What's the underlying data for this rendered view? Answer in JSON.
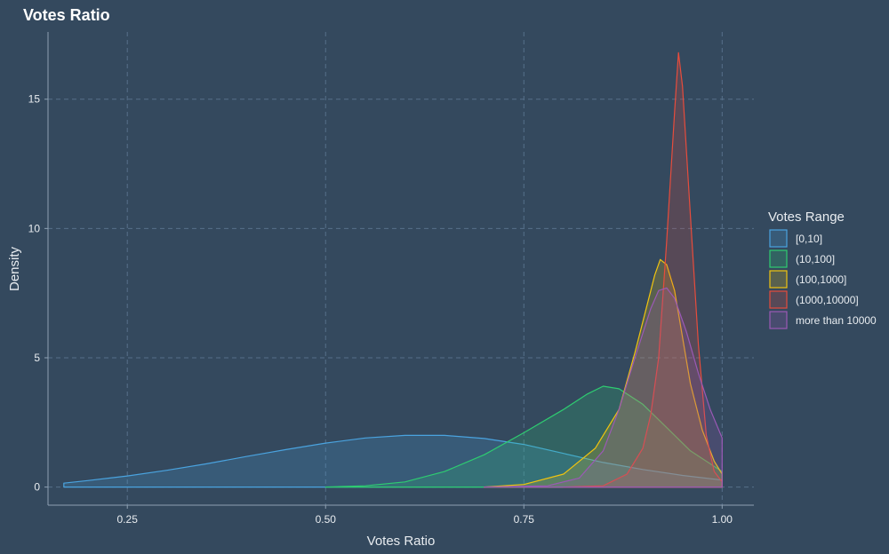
{
  "chart_data": {
    "type": "area",
    "title": "Votes Ratio",
    "xlabel": "Votes Ratio",
    "ylabel": "Density",
    "xlim": [
      0.15,
      1.04
    ],
    "ylim": [
      -0.7,
      17.6
    ],
    "x_ticks": [
      0.25,
      0.5,
      0.75,
      1.0
    ],
    "x_tick_labels": [
      "0.25",
      "0.50",
      "0.75",
      "1.00"
    ],
    "y_ticks": [
      0,
      5,
      10,
      15
    ],
    "y_tick_labels": [
      "0",
      "5",
      "10",
      "15"
    ],
    "grid": true,
    "legend": {
      "title": "Votes Range",
      "position": "right"
    },
    "fill_opacity": 0.2,
    "series": [
      {
        "name": "[0,10]",
        "color": "#4aa3df",
        "points": [
          [
            0.17,
            0.15
          ],
          [
            0.2,
            0.25
          ],
          [
            0.25,
            0.43
          ],
          [
            0.3,
            0.65
          ],
          [
            0.35,
            0.9
          ],
          [
            0.4,
            1.18
          ],
          [
            0.45,
            1.45
          ],
          [
            0.5,
            1.7
          ],
          [
            0.55,
            1.9
          ],
          [
            0.6,
            2.0
          ],
          [
            0.65,
            2.0
          ],
          [
            0.7,
            1.88
          ],
          [
            0.75,
            1.65
          ],
          [
            0.8,
            1.3
          ],
          [
            0.85,
            0.95
          ],
          [
            0.9,
            0.68
          ],
          [
            0.95,
            0.45
          ],
          [
            1.0,
            0.27
          ]
        ]
      },
      {
        "name": "(10,100]",
        "color": "#2ecc71",
        "points": [
          [
            0.5,
            0.0
          ],
          [
            0.55,
            0.05
          ],
          [
            0.6,
            0.2
          ],
          [
            0.65,
            0.6
          ],
          [
            0.7,
            1.25
          ],
          [
            0.75,
            2.1
          ],
          [
            0.8,
            3.0
          ],
          [
            0.83,
            3.6
          ],
          [
            0.85,
            3.9
          ],
          [
            0.87,
            3.8
          ],
          [
            0.9,
            3.2
          ],
          [
            0.93,
            2.3
          ],
          [
            0.96,
            1.4
          ],
          [
            1.0,
            0.6
          ]
        ]
      },
      {
        "name": "(100,1000]",
        "color": "#f1c40f",
        "points": [
          [
            0.7,
            0.0
          ],
          [
            0.75,
            0.1
          ],
          [
            0.8,
            0.5
          ],
          [
            0.84,
            1.5
          ],
          [
            0.87,
            3.0
          ],
          [
            0.89,
            5.2
          ],
          [
            0.905,
            7.0
          ],
          [
            0.915,
            8.2
          ],
          [
            0.922,
            8.8
          ],
          [
            0.93,
            8.6
          ],
          [
            0.94,
            7.6
          ],
          [
            0.95,
            5.8
          ],
          [
            0.96,
            4.0
          ],
          [
            0.975,
            2.2
          ],
          [
            0.99,
            1.0
          ],
          [
            1.0,
            0.5
          ]
        ]
      },
      {
        "name": "(1000,10000]",
        "color": "#e74c3c",
        "points": [
          [
            0.8,
            0.0
          ],
          [
            0.85,
            0.05
          ],
          [
            0.88,
            0.5
          ],
          [
            0.9,
            1.5
          ],
          [
            0.91,
            2.8
          ],
          [
            0.92,
            5.0
          ],
          [
            0.93,
            9.5
          ],
          [
            0.94,
            14.5
          ],
          [
            0.945,
            16.8
          ],
          [
            0.95,
            15.5
          ],
          [
            0.96,
            10.5
          ],
          [
            0.97,
            5.5
          ],
          [
            0.98,
            2.0
          ],
          [
            0.99,
            0.6
          ],
          [
            1.0,
            0.2
          ]
        ]
      },
      {
        "name": "more than 10000",
        "color": "#9b59b6",
        "points": [
          [
            0.7,
            0.0
          ],
          [
            0.78,
            0.05
          ],
          [
            0.82,
            0.35
          ],
          [
            0.85,
            1.4
          ],
          [
            0.87,
            3.0
          ],
          [
            0.89,
            5.0
          ],
          [
            0.91,
            6.9
          ],
          [
            0.92,
            7.6
          ],
          [
            0.93,
            7.7
          ],
          [
            0.94,
            7.3
          ],
          [
            0.955,
            6.0
          ],
          [
            0.97,
            4.4
          ],
          [
            0.985,
            3.0
          ],
          [
            1.0,
            1.9
          ]
        ]
      }
    ]
  }
}
